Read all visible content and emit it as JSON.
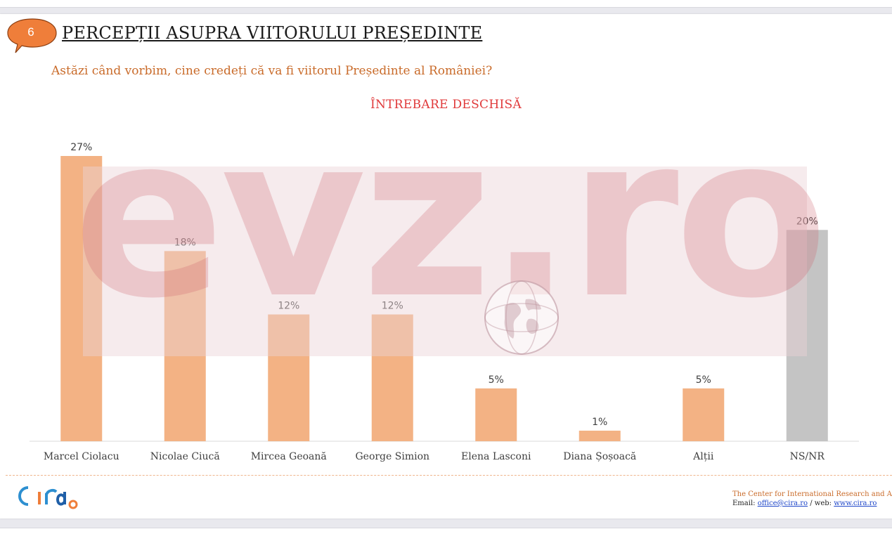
{
  "slide": {
    "number": "6",
    "title": "PERCEPȚII ASUPRA VIITORULUI PREȘEDINTE",
    "question": "Astăzi când vorbim, cine credeți că va fi viitorul Președinte al României?",
    "open_question_label": "ÎNTREBARE DESCHISĂ"
  },
  "watermark": {
    "text": "evz.ro",
    "icon": "globe-icon"
  },
  "colors": {
    "bar": "#f3b284",
    "bar_nsnr": "#c4c4c4",
    "title_accent": "#c96b2a",
    "badge": "#ef7e3a",
    "open_question": "#e0393a"
  },
  "chart_data": {
    "type": "bar",
    "categories": [
      "Marcel Ciolacu",
      "Nicolae Ciucă",
      "Mircea Geoană",
      "George Simion",
      "Elena Lasconi",
      "Diana Șoșoacă",
      "Alții",
      "NS/NR"
    ],
    "values": [
      27,
      18,
      12,
      12,
      5,
      1,
      5,
      20
    ],
    "labels": [
      "27%",
      "18%",
      "12%",
      "12%",
      "5%",
      "1%",
      "5%",
      "20%"
    ],
    "unit": "%",
    "ylim": [
      0,
      27
    ],
    "grid": false,
    "legend": false
  },
  "footer": {
    "logo_text": "cira",
    "org": "The Center for International Research and Analysis",
    "email_label": "Email: ",
    "email": "office@cira.ro",
    "web_label": " / web: ",
    "web": "www.cira.ro"
  }
}
